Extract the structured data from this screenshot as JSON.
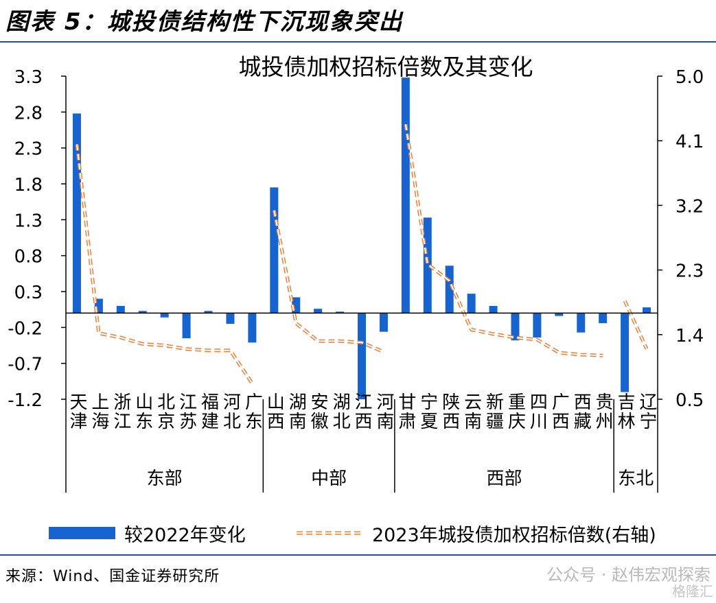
{
  "figure_title": "图表 5：城投债结构性下沉现象突出",
  "source_text": "来源：Wind、国金证券研究所",
  "watermark": "公众号 · 赵伟宏观探索",
  "watermark2": "格隆汇",
  "colors": {
    "bar": "#1764d0",
    "line": "#ed7d31",
    "rule": "#1d4f91"
  },
  "chart_data": {
    "type": "bar",
    "title": "城投债加权招标倍数及其变化",
    "categories": [
      "天津",
      "上海",
      "浙江",
      "山东",
      "北京",
      "江苏",
      "福建",
      "河北",
      "广东",
      "山西",
      "湖南",
      "安徽",
      "湖北",
      "江西",
      "河南",
      "甘肃",
      "宁夏",
      "陕西",
      "云南",
      "新疆",
      "重庆",
      "四川",
      "广西",
      "西藏",
      "贵州",
      "吉林",
      "辽宁"
    ],
    "groups": [
      {
        "name": "东部",
        "count": 9
      },
      {
        "name": "中部",
        "count": 6
      },
      {
        "name": "西部",
        "count": 10
      },
      {
        "name": "东北",
        "count": 2
      }
    ],
    "series": [
      {
        "name": "较2022年变化",
        "axis": "left",
        "kind": "bar",
        "values": [
          2.78,
          0.2,
          0.1,
          0.03,
          -0.06,
          -0.35,
          0.03,
          -0.15,
          -0.41,
          1.75,
          0.22,
          0.06,
          0.02,
          -1.2,
          -0.26,
          3.28,
          1.33,
          0.66,
          0.27,
          0.1,
          -0.38,
          -0.34,
          -0.04,
          -0.27,
          -0.14,
          -1.1,
          0.08
        ]
      },
      {
        "name": "2023年城投债加权招标倍数(右轴)",
        "axis": "right",
        "kind": "line-dashed",
        "segments": [
          [
            4.05,
            1.42,
            1.36,
            1.27,
            1.25,
            1.2,
            1.18,
            1.18,
            0.72
          ],
          [
            3.13,
            1.56,
            1.31,
            1.31,
            1.29,
            1.16
          ],
          [
            4.33,
            2.38,
            2.15,
            1.47,
            1.41,
            1.36,
            1.33,
            1.15,
            1.12,
            1.11
          ],
          [
            1.87,
            1.2
          ]
        ]
      }
    ],
    "y_left": {
      "min": -1.2,
      "max": 3.3,
      "ticks": [
        "3.3",
        "2.8",
        "2.3",
        "1.8",
        "1.3",
        "0.8",
        "0.3",
        "-0.2",
        "-0.7",
        "-1.2"
      ]
    },
    "y_right": {
      "min": 0.5,
      "max": 5.0,
      "ticks": [
        "5.0",
        "4.1",
        "3.2",
        "2.3",
        "1.4",
        "0.5"
      ]
    },
    "legend_position": "bottom"
  }
}
